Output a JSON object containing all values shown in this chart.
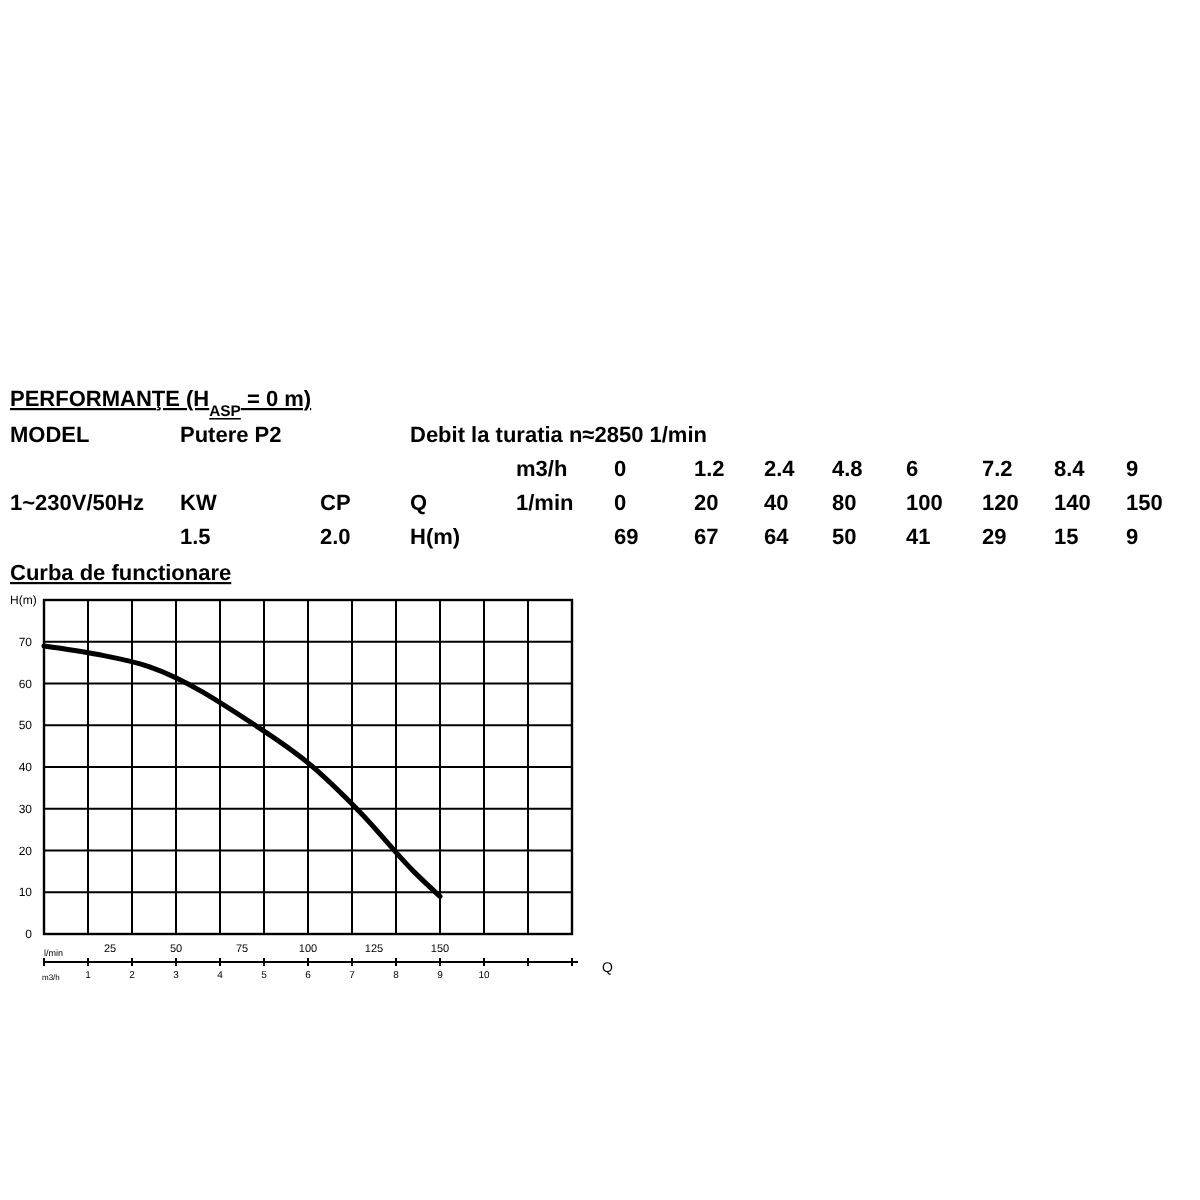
{
  "chart_data": {
    "type": "line",
    "title": "PERFORMANŢE (H$_{ASP}$ = 0 m)",
    "subtitle": "Curba de functionare",
    "ylabel": "H(m)",
    "xlabel": "Q",
    "annotations": [
      "MODEL",
      "Putere P2",
      "Debit la turatia  n≈2850 1/min",
      "m3/h",
      "1~230V/50Hz",
      "KW",
      "CP",
      "Q",
      "1/min",
      "1.5",
      "2.0",
      "H(m)",
      "0",
      "20",
      "40",
      "80",
      "100",
      "120",
      "140",
      "150",
      "l/min",
      "m3/h",
      "0",
      "1.2",
      "2.4",
      "4.8",
      "6",
      "7.2",
      "8.4",
      "9",
      "69",
      "67",
      "64",
      "50",
      "41",
      "29",
      "15",
      "9"
    ],
    "x": [
      0,
      1.2,
      2.4,
      4.8,
      6,
      7.2,
      8.4,
      9
    ],
    "series": [
      {
        "color": "#000000",
        "values": [
          69,
          67,
          64,
          50,
          41,
          29,
          15,
          9
        ]
      }
    ],
    "xlim": [
      0,
      12
    ],
    "xticks": [
      {
        "value": 0,
        "label": null
      },
      1,
      2,
      3,
      4,
      5,
      6,
      7,
      8,
      9,
      10,
      {
        "value": 11,
        "label": null
      },
      {
        "value": 12,
        "label": null
      }
    ],
    "x2lim": [
      0,
      200
    ],
    "x2ticks": [
      25,
      50,
      75,
      100,
      125,
      150
    ],
    "ylim": [
      0,
      80
    ],
    "yticks": [
      0,
      10,
      20,
      30,
      40,
      50,
      60,
      70,
      {
        "value": 80,
        "label": null
      }
    ],
    "grid": true
  }
}
